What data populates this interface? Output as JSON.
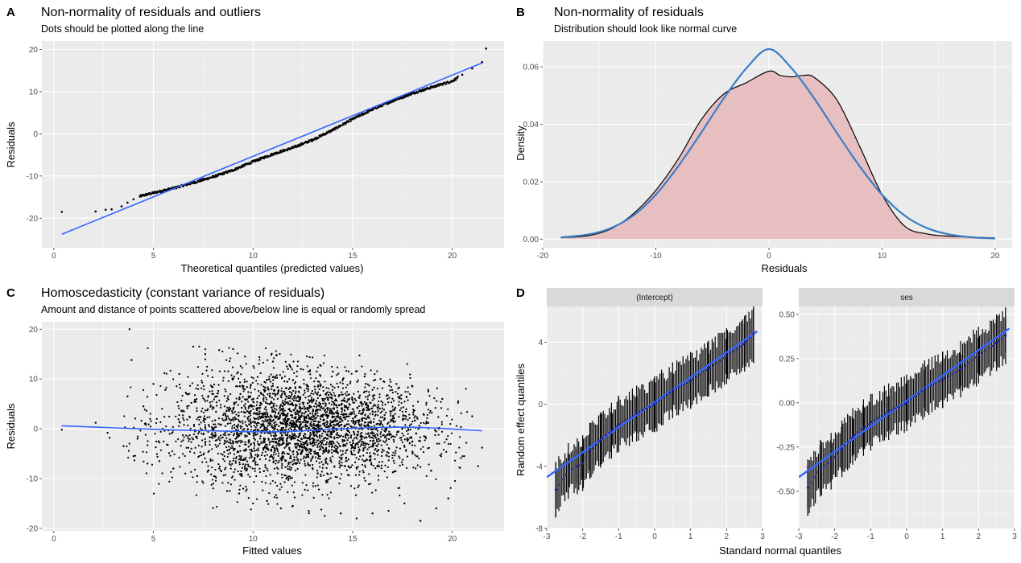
{
  "chart_data": [
    {
      "id": "A",
      "type": "scatter",
      "tag": "A",
      "title": "Non-normality of residuals and outliers",
      "subtitle": "Dots should be plotted along the line",
      "xlabel": "Theoretical quantiles (predicted values)",
      "ylabel": "Residuals",
      "xlim": [
        -0.6,
        22.6
      ],
      "ylim": [
        -27,
        22
      ],
      "xticks": [
        0,
        5,
        10,
        15,
        20
      ],
      "yticks": [
        -20,
        -10,
        0,
        10,
        20
      ],
      "grid": true,
      "reference_line": {
        "x": [
          0.4,
          21.5
        ],
        "y": [
          -23.8,
          16.8
        ],
        "color": "#3366ff"
      },
      "points": [
        [
          0.4,
          -18.5
        ],
        [
          2.1,
          -18.4
        ],
        [
          2.6,
          -18.0
        ],
        [
          2.9,
          -17.9
        ],
        [
          3.4,
          -17.2
        ],
        [
          3.7,
          -16.3
        ],
        [
          4.0,
          -15.5
        ],
        [
          4.4,
          -14.7
        ],
        [
          5.0,
          -14.0
        ],
        [
          6.0,
          -12.9
        ],
        [
          7.0,
          -11.6
        ],
        [
          8.0,
          -10.2
        ],
        [
          9.0,
          -8.6
        ],
        [
          10.0,
          -6.6
        ],
        [
          11.0,
          -4.8
        ],
        [
          12.0,
          -3.3
        ],
        [
          13.0,
          -1.4
        ],
        [
          14.0,
          0.9
        ],
        [
          15.0,
          3.5
        ],
        [
          16.0,
          5.8
        ],
        [
          17.0,
          7.8
        ],
        [
          18.0,
          9.6
        ],
        [
          19.0,
          11.1
        ],
        [
          20.0,
          12.5
        ],
        [
          20.5,
          14.0
        ],
        [
          21.0,
          15.5
        ],
        [
          21.5,
          17.0
        ],
        [
          21.7,
          20.2
        ]
      ],
      "point_color": "#000000"
    },
    {
      "id": "B",
      "type": "area",
      "tag": "B",
      "title": "Non-normality of residuals",
      "subtitle": "Distribution should look like normal curve",
      "xlabel": "Residuals",
      "ylabel": "Density",
      "xlim": [
        -20,
        21.5
      ],
      "ylim": [
        -0.003,
        0.069
      ],
      "xticks": [
        -20,
        -10,
        0,
        10,
        20
      ],
      "yticks": [
        0.0,
        0.02,
        0.04,
        0.06
      ],
      "ytick_labels": [
        "0.00",
        "0.02",
        "0.04",
        "0.06"
      ],
      "grid": true,
      "series": [
        {
          "kind": "density",
          "fill": "#e8bfc1",
          "stroke": "#000000",
          "x": [
            -18.4,
            -16,
            -14,
            -12,
            -10,
            -8,
            -6,
            -4,
            -2,
            0,
            1,
            2,
            3,
            4,
            6,
            8,
            10,
            12,
            14,
            16,
            18,
            20
          ],
          "y": [
            0.0005,
            0.0012,
            0.0035,
            0.0088,
            0.017,
            0.028,
            0.0415,
            0.0505,
            0.0545,
            0.0585,
            0.057,
            0.0565,
            0.057,
            0.0563,
            0.0485,
            0.0325,
            0.0155,
            0.0045,
            0.0018,
            0.001,
            0.0007,
            0.0004
          ]
        },
        {
          "kind": "normal",
          "stroke": "#3a7dc6",
          "x": [
            -18.4,
            -16,
            -14,
            -12,
            -10,
            -8,
            -6,
            -4,
            -2,
            0,
            2,
            4,
            6,
            8,
            10,
            12,
            14,
            16,
            18,
            20
          ],
          "y": [
            0.0006,
            0.0016,
            0.0038,
            0.0082,
            0.0155,
            0.0255,
            0.037,
            0.049,
            0.0595,
            0.0662,
            0.0595,
            0.049,
            0.037,
            0.0255,
            0.0155,
            0.0082,
            0.0038,
            0.0016,
            0.0006,
            0.0002
          ]
        }
      ]
    },
    {
      "id": "C",
      "type": "scatter",
      "tag": "C",
      "title": "Homoscedasticity (constant variance of residuals)",
      "subtitle": "Amount and distance of points scattered above/below line is equal or randomly spread",
      "xlabel": "Fitted values",
      "ylabel": "Residuals",
      "xlim": [
        -0.6,
        22.6
      ],
      "ylim": [
        -20.5,
        21.5
      ],
      "xticks": [
        0,
        5,
        10,
        15,
        20
      ],
      "yticks": [
        -20,
        -10,
        0,
        10,
        20
      ],
      "grid": true,
      "smooth_line": {
        "x": [
          0.4,
          5,
          10,
          12,
          15,
          18,
          21.5
        ],
        "y": [
          0.6,
          -0.1,
          -0.6,
          -0.5,
          0.1,
          0.3,
          -0.4
        ],
        "color": "#3366ff"
      },
      "points": [
        [
          0.4,
          -0.2
        ],
        [
          2.1,
          1.2
        ],
        [
          2.7,
          -0.8
        ],
        [
          2.8,
          -1.8
        ],
        [
          3.5,
          -3.5
        ],
        [
          3.7,
          6.5
        ],
        [
          3.8,
          20.0
        ],
        [
          3.9,
          13.8
        ],
        [
          4.0,
          -5.5
        ],
        [
          4.2,
          -2.0
        ],
        [
          4.5,
          4.5
        ],
        [
          4.7,
          -7.0
        ],
        [
          5.0,
          9.0
        ],
        [
          5.3,
          -6.5
        ],
        [
          5.6,
          7.8
        ],
        [
          6.0,
          -8.0
        ],
        [
          6.3,
          11.0
        ],
        [
          6.6,
          -9.0
        ],
        [
          7.0,
          16.5
        ],
        [
          7.2,
          -9.5
        ],
        [
          7.6,
          15.0
        ],
        [
          8.0,
          -11.0
        ],
        [
          8.3,
          15.8
        ],
        [
          8.7,
          -12.5
        ],
        [
          9.0,
          16.0
        ],
        [
          9.3,
          -13.0
        ],
        [
          9.6,
          14.5
        ],
        [
          10.0,
          -15.0
        ],
        [
          10.3,
          13.0
        ],
        [
          10.7,
          -14.5
        ],
        [
          11.0,
          13.5
        ],
        [
          11.4,
          -16.0
        ],
        [
          11.7,
          12.5
        ],
        [
          12.0,
          -15.5
        ],
        [
          12.4,
          12.0
        ],
        [
          12.8,
          -16.5
        ],
        [
          13.2,
          11.5
        ],
        [
          13.6,
          -17.5
        ],
        [
          14.0,
          11.5
        ],
        [
          14.4,
          -17.0
        ],
        [
          14.8,
          11.5
        ],
        [
          15.2,
          -18.0
        ],
        [
          15.6,
          10.5
        ],
        [
          16.0,
          -17.0
        ],
        [
          16.4,
          10.0
        ],
        [
          16.8,
          -16.5
        ],
        [
          17.2,
          9.0
        ],
        [
          17.6,
          -15.0
        ],
        [
          18.0,
          8.5
        ],
        [
          18.4,
          -18.5
        ],
        [
          18.8,
          7.5
        ],
        [
          19.2,
          -16.0
        ],
        [
          19.5,
          6.0
        ],
        [
          19.8,
          -14.0
        ],
        [
          20.3,
          5.5
        ],
        [
          20.6,
          -5.5
        ],
        [
          21.0,
          2.5
        ],
        [
          21.3,
          -7.5
        ],
        [
          21.5,
          -3.8
        ]
      ],
      "point_color": "#000000"
    },
    {
      "id": "D",
      "type": "scatter",
      "tag": "D",
      "xlabel": "Standard normal quantiles",
      "ylabel": "Random effect quantiles",
      "facets": [
        {
          "strip": "(Intercept)",
          "xlim": [
            -3,
            3
          ],
          "ylim": [
            -8,
            6.3
          ],
          "xticks": [
            -3,
            -2,
            -1,
            0,
            1,
            2,
            3
          ],
          "yticks": [
            -8,
            -4,
            0,
            4
          ],
          "line": {
            "x": [
              -3,
              2.85
            ],
            "y": [
              -4.7,
              4.7
            ]
          },
          "points": [
            [
              -2.75,
              -5.5
            ],
            [
              -2.4,
              -4.3
            ],
            [
              -2.15,
              -4.0
            ],
            [
              -2.0,
              -3.8
            ],
            [
              -1.8,
              -3.0
            ],
            [
              -1.5,
              -2.3
            ],
            [
              -1.2,
              -1.7
            ],
            [
              -1.0,
              -1.3
            ],
            [
              -0.5,
              -0.6
            ],
            [
              0.0,
              0.0
            ],
            [
              0.5,
              0.9
            ],
            [
              1.0,
              1.5
            ],
            [
              1.5,
              2.3
            ],
            [
              2.0,
              3.1
            ],
            [
              2.5,
              3.9
            ],
            [
              2.75,
              4.5
            ]
          ],
          "err": 1.8
        },
        {
          "strip": "ses",
          "xlim": [
            -3,
            3
          ],
          "ylim": [
            -0.71,
            0.545
          ],
          "xticks": [
            -3,
            -2,
            -1,
            0,
            1,
            2,
            3
          ],
          "yticks": [
            -0.5,
            -0.25,
            0.0,
            0.25,
            0.5
          ],
          "ytick_labels": [
            "-0.50",
            "-0.25",
            "0.00",
            "0.25",
            "0.50"
          ],
          "line": {
            "x": [
              -3,
              2.85
            ],
            "y": [
              -0.42,
              0.42
            ]
          },
          "points": [
            [
              -2.75,
              -0.48
            ],
            [
              -2.4,
              -0.37
            ],
            [
              -2.1,
              -0.33
            ],
            [
              -1.8,
              -0.26
            ],
            [
              -1.5,
              -0.19
            ],
            [
              -1.2,
              -0.14
            ],
            [
              -1.0,
              -0.11
            ],
            [
              -0.5,
              -0.05
            ],
            [
              0.0,
              0.0
            ],
            [
              0.5,
              0.08
            ],
            [
              1.0,
              0.13
            ],
            [
              1.5,
              0.19
            ],
            [
              2.0,
              0.27
            ],
            [
              2.5,
              0.34
            ],
            [
              2.75,
              0.38
            ]
          ],
          "err": 0.16
        }
      ]
    }
  ]
}
